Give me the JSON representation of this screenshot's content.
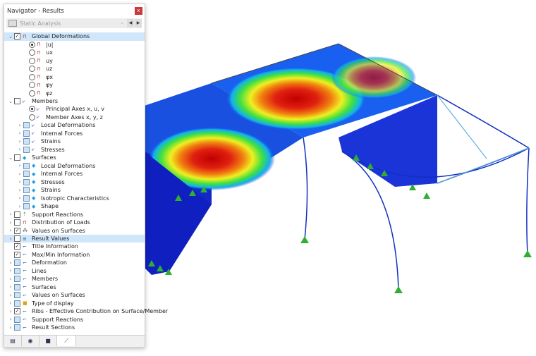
{
  "window": {
    "title": "Navigator - Results",
    "close": "x"
  },
  "dropdown": {
    "value": "Static Analysis",
    "prev": "◀",
    "next": "▶"
  },
  "tree": [
    {
      "label": "Global Deformations",
      "level": 0,
      "expand": "v",
      "check": "checked",
      "icon": "deformation-icon",
      "selected": true
    },
    {
      "label": "|u|",
      "level": 1,
      "radio": "on",
      "icon": "deformation-icon"
    },
    {
      "label": "ux",
      "level": 1,
      "radio": "off",
      "icon": "deformation-icon"
    },
    {
      "label": "uy",
      "level": 1,
      "radio": "off",
      "icon": "deformation-icon"
    },
    {
      "label": "uz",
      "level": 1,
      "radio": "off",
      "icon": "deformation-icon"
    },
    {
      "label": "φx",
      "level": 1,
      "radio": "off",
      "icon": "deformation-icon"
    },
    {
      "label": "φy",
      "level": 1,
      "radio": "off",
      "icon": "deformation-icon"
    },
    {
      "label": "φz",
      "level": 1,
      "radio": "off",
      "icon": "deformation-icon"
    },
    {
      "label": "Members",
      "level": 0,
      "expand": "v",
      "check": "empty",
      "icon": "member-icon"
    },
    {
      "label": "Principal Axes x, u, v",
      "level": 1,
      "radio": "on",
      "icon": "member-icon"
    },
    {
      "label": "Member Axes x, y, z",
      "level": 1,
      "radio": "off",
      "icon": "member-icon"
    },
    {
      "label": "Local Deformations",
      "level": 1,
      "expand": ">",
      "check": "blue",
      "icon": "member-icon"
    },
    {
      "label": "Internal Forces",
      "level": 1,
      "expand": ">",
      "check": "blue",
      "icon": "member-icon"
    },
    {
      "label": "Strains",
      "level": 1,
      "expand": ">",
      "check": "blue",
      "icon": "member-icon"
    },
    {
      "label": "Stresses",
      "level": 1,
      "expand": ">",
      "check": "blue",
      "icon": "member-icon"
    },
    {
      "label": "Surfaces",
      "level": 0,
      "expand": "v",
      "check": "empty",
      "icon": "surface-icon"
    },
    {
      "label": "Local Deformations",
      "level": 1,
      "expand": ">",
      "check": "blue",
      "icon": "surface-icon"
    },
    {
      "label": "Internal Forces",
      "level": 1,
      "expand": ">",
      "check": "blue",
      "icon": "surface-icon"
    },
    {
      "label": "Stresses",
      "level": 1,
      "expand": ">",
      "check": "blue",
      "icon": "surface-icon"
    },
    {
      "label": "Strains",
      "level": 1,
      "expand": ">",
      "check": "blue",
      "icon": "surface-icon"
    },
    {
      "label": "Isotropic Characteristics",
      "level": 1,
      "expand": ">",
      "check": "blue",
      "icon": "surface-icon"
    },
    {
      "label": "Shape",
      "level": 1,
      "expand": ">",
      "check": "blue",
      "icon": "surface-icon"
    },
    {
      "label": "Support Reactions",
      "level": 0,
      "expand": ">",
      "check": "empty",
      "icon": "support-icon"
    },
    {
      "label": "Distribution of Loads",
      "level": 0,
      "expand": ">",
      "check": "empty",
      "icon": "deformation-icon"
    },
    {
      "label": "Values on Surfaces",
      "level": 0,
      "expand": ">",
      "check": "checked",
      "icon": "values-icon"
    },
    {
      "label": "Result Values",
      "level": 0,
      "expand": ">",
      "check": "empty",
      "icon": "result-values-icon",
      "selected": true
    },
    {
      "label": "Title Information",
      "level": 0,
      "check": "checked",
      "icon": "display-icon"
    },
    {
      "label": "Max/Min Information",
      "level": 0,
      "check": "checked",
      "icon": "display-icon"
    },
    {
      "label": "Deformation",
      "level": 0,
      "expand": ">",
      "check": "blue",
      "icon": "display-icon"
    },
    {
      "label": "Lines",
      "level": 0,
      "expand": ">",
      "check": "blue",
      "icon": "display-icon"
    },
    {
      "label": "Members",
      "level": 0,
      "expand": ">",
      "check": "blue",
      "icon": "display-icon"
    },
    {
      "label": "Surfaces",
      "level": 0,
      "expand": ">",
      "check": "blue",
      "icon": "display-icon"
    },
    {
      "label": "Values on Surfaces",
      "level": 0,
      "expand": ">",
      "check": "blue",
      "icon": "display-icon"
    },
    {
      "label": "Type of display",
      "level": 0,
      "expand": ">",
      "check": "blue",
      "icon": "color-scale-icon"
    },
    {
      "label": "Ribs - Effective Contribution on Surface/Member",
      "level": 0,
      "expand": ">",
      "check": "checked",
      "icon": "display-icon"
    },
    {
      "label": "Support Reactions",
      "level": 0,
      "expand": ">",
      "check": "blue",
      "icon": "display-icon"
    },
    {
      "label": "Result Sections",
      "level": 0,
      "expand": ">",
      "check": "blue",
      "icon": "display-icon"
    }
  ],
  "tabs": [
    {
      "icon": "data-icon",
      "glyph": "▤"
    },
    {
      "icon": "eye-icon",
      "glyph": "◉"
    },
    {
      "icon": "camera-icon",
      "glyph": "■"
    },
    {
      "icon": "results-icon",
      "glyph": "⟋",
      "active": true
    }
  ]
}
